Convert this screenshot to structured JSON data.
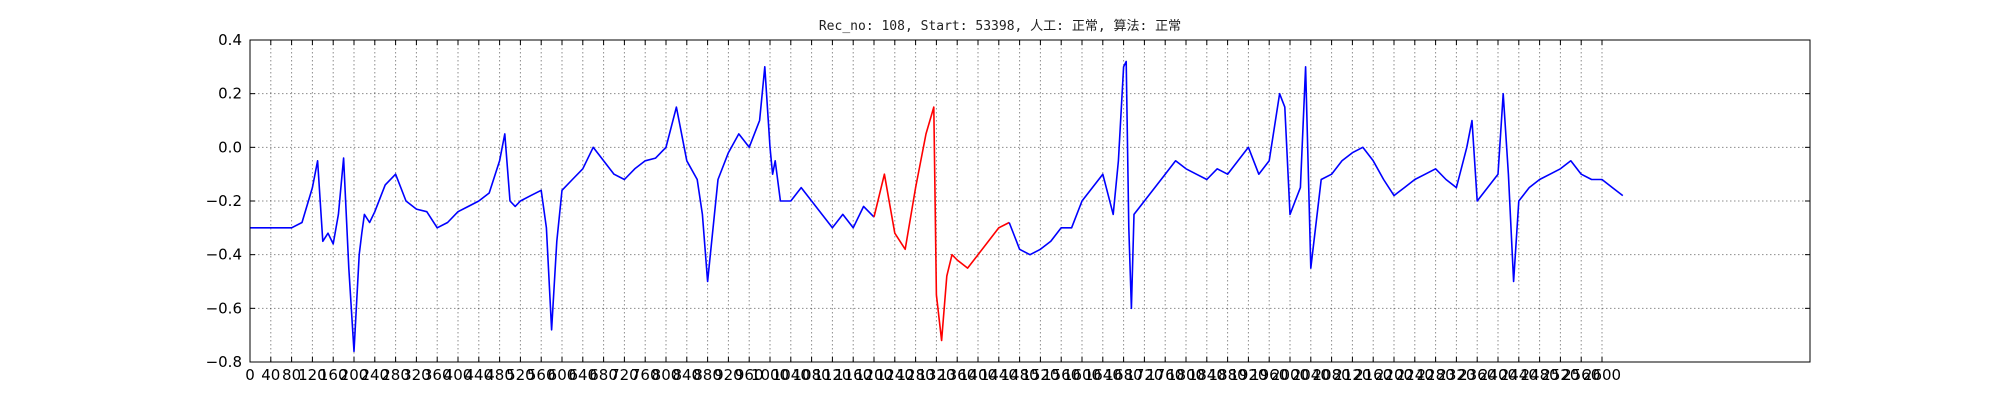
{
  "chart_data": {
    "type": "line",
    "title": "Rec_no: 108, Start: 53398, 人工: 正常, 算法: 正常",
    "xlabel": "",
    "ylabel": "",
    "xlim": [
      0,
      3000
    ],
    "ylim": [
      -0.8,
      0.4
    ],
    "grid": true,
    "x_ticks": [
      0,
      40,
      80,
      120,
      160,
      200,
      240,
      280,
      320,
      360,
      400,
      440,
      480,
      520,
      560,
      600,
      640,
      680,
      720,
      760,
      800,
      840,
      880,
      920,
      960,
      1000,
      1040,
      1080,
      1120,
      1160,
      1200,
      1240,
      1280,
      1320,
      1360,
      1400,
      1440,
      1480,
      1520,
      1560,
      1600,
      1640,
      1680,
      1720,
      1760,
      1800,
      1840,
      1880,
      1920,
      1960,
      2000,
      2040,
      2080,
      2120,
      2160,
      2200,
      2240,
      2280,
      2320,
      2360,
      2400,
      2440,
      2480,
      2520,
      2560,
      2600
    ],
    "x_tick_labels": [
      "0",
      "40",
      "80",
      "120",
      "160",
      "200",
      "240",
      "280",
      "320",
      "360",
      "400",
      "440",
      "480",
      "520",
      "560",
      "600",
      "640",
      "680",
      "720",
      "760",
      "800",
      "840",
      "880",
      "920",
      "960",
      "1000",
      "1040",
      "1080",
      "1120",
      "1160",
      "1200",
      "1240",
      "1280",
      "1320",
      "1360",
      "1400",
      "1440",
      "1480",
      "1520",
      "1560",
      "1600",
      "1640",
      "1680",
      "1720",
      "1760",
      "1800",
      "1840",
      "1880",
      "1920",
      "1960",
      "2000",
      "2040",
      "2080",
      "2120",
      "2160",
      "2200",
      "2240",
      "2280",
      "2320",
      "2360",
      "2400",
      "2440",
      "2480",
      "2520",
      "2560",
      "2600"
    ],
    "y_ticks": [
      -0.8,
      -0.6,
      -0.4,
      -0.2,
      0.0,
      0.2,
      0.4
    ],
    "y_tick_labels": [
      "−0.8",
      "−0.6",
      "−0.4",
      "−0.2",
      "0.0",
      "0.2",
      "0.4"
    ],
    "colors": {
      "normal": "#0000ff",
      "highlight": "#ff0000"
    },
    "series": [
      {
        "color": "#0000ff",
        "x": [
          0,
          20,
          40,
          60,
          80,
          100,
          120,
          130,
          140,
          150,
          160,
          170,
          180,
          190,
          200,
          210,
          215,
          220,
          230,
          240,
          260,
          280,
          300,
          320,
          340,
          360,
          380,
          400,
          420,
          440,
          460,
          480,
          490,
          500,
          510,
          520,
          540,
          560,
          570,
          580,
          590,
          600,
          620,
          640,
          660,
          680,
          700,
          720,
          740,
          760,
          780,
          800,
          820,
          840,
          860,
          870,
          880,
          900,
          920,
          940,
          960,
          980,
          990,
          1000,
          1005,
          1010,
          1020,
          1040,
          1060,
          1080,
          1100,
          1120,
          1140,
          1160,
          1180,
          1200
        ],
        "y": [
          -0.3,
          -0.3,
          -0.3,
          -0.3,
          -0.3,
          -0.28,
          -0.15,
          -0.05,
          -0.35,
          -0.32,
          -0.36,
          -0.25,
          -0.04,
          -0.45,
          -0.76,
          -0.4,
          -0.32,
          -0.25,
          -0.28,
          -0.24,
          -0.14,
          -0.1,
          -0.2,
          -0.23,
          -0.24,
          -0.3,
          -0.28,
          -0.24,
          -0.22,
          -0.2,
          -0.17,
          -0.05,
          0.05,
          -0.2,
          -0.22,
          -0.2,
          -0.18,
          -0.16,
          -0.3,
          -0.68,
          -0.35,
          -0.16,
          -0.12,
          -0.08,
          0.0,
          -0.05,
          -0.1,
          -0.12,
          -0.08,
          -0.05,
          -0.04,
          0.0,
          0.15,
          -0.05,
          -0.12,
          -0.25,
          -0.5,
          -0.12,
          -0.02,
          0.05,
          0.0,
          0.1,
          0.3,
          0.0,
          -0.1,
          -0.05,
          -0.2,
          -0.2,
          -0.15,
          -0.2,
          -0.25,
          -0.3,
          -0.25,
          -0.3,
          -0.22,
          -0.26
        ]
      },
      {
        "color": "#ff0000",
        "x": [
          1200,
          1220,
          1240,
          1260,
          1280,
          1300,
          1315,
          1320,
          1330,
          1340,
          1350,
          1360,
          1380,
          1400,
          1420,
          1440,
          1460
        ],
        "y": [
          -0.26,
          -0.1,
          -0.32,
          -0.38,
          -0.15,
          0.05,
          0.15,
          -0.55,
          -0.72,
          -0.48,
          -0.4,
          -0.42,
          -0.45,
          -0.4,
          -0.35,
          -0.3,
          -0.28
        ]
      },
      {
        "color": "#0000ff",
        "x": [
          1460,
          1480,
          1500,
          1520,
          1540,
          1560,
          1580,
          1600,
          1620,
          1640,
          1660,
          1670,
          1680,
          1685,
          1690,
          1695,
          1700,
          1720,
          1740,
          1760,
          1780,
          1800,
          1820,
          1840,
          1860,
          1880,
          1900,
          1920,
          1940,
          1960,
          1980,
          1990,
          2000,
          2010,
          2020,
          2030,
          2040,
          2060,
          2080,
          2100,
          2120,
          2140,
          2160,
          2180,
          2200,
          2220,
          2240,
          2260,
          2280,
          2300,
          2320,
          2340,
          2350,
          2360,
          2380,
          2400,
          2410,
          2420,
          2430,
          2440,
          2460,
          2480,
          2500,
          2520,
          2540,
          2560,
          2580,
          2600,
          2620,
          2640
        ],
        "y": [
          -0.28,
          -0.38,
          -0.4,
          -0.38,
          -0.35,
          -0.3,
          -0.3,
          -0.2,
          -0.15,
          -0.1,
          -0.25,
          -0.05,
          0.3,
          0.32,
          -0.3,
          -0.6,
          -0.25,
          -0.2,
          -0.15,
          -0.1,
          -0.05,
          -0.08,
          -0.1,
          -0.12,
          -0.08,
          -0.1,
          -0.05,
          0.0,
          -0.1,
          -0.05,
          0.2,
          0.15,
          -0.25,
          -0.2,
          -0.15,
          0.3,
          -0.45,
          -0.12,
          -0.1,
          -0.05,
          -0.02,
          0.0,
          -0.05,
          -0.12,
          -0.18,
          -0.15,
          -0.12,
          -0.1,
          -0.08,
          -0.12,
          -0.15,
          0.0,
          0.1,
          -0.2,
          -0.15,
          -0.1,
          0.2,
          -0.1,
          -0.5,
          -0.2,
          -0.15,
          -0.12,
          -0.1,
          -0.08,
          -0.05,
          -0.1,
          -0.12,
          -0.12,
          -0.15,
          -0.18
        ]
      }
    ]
  }
}
